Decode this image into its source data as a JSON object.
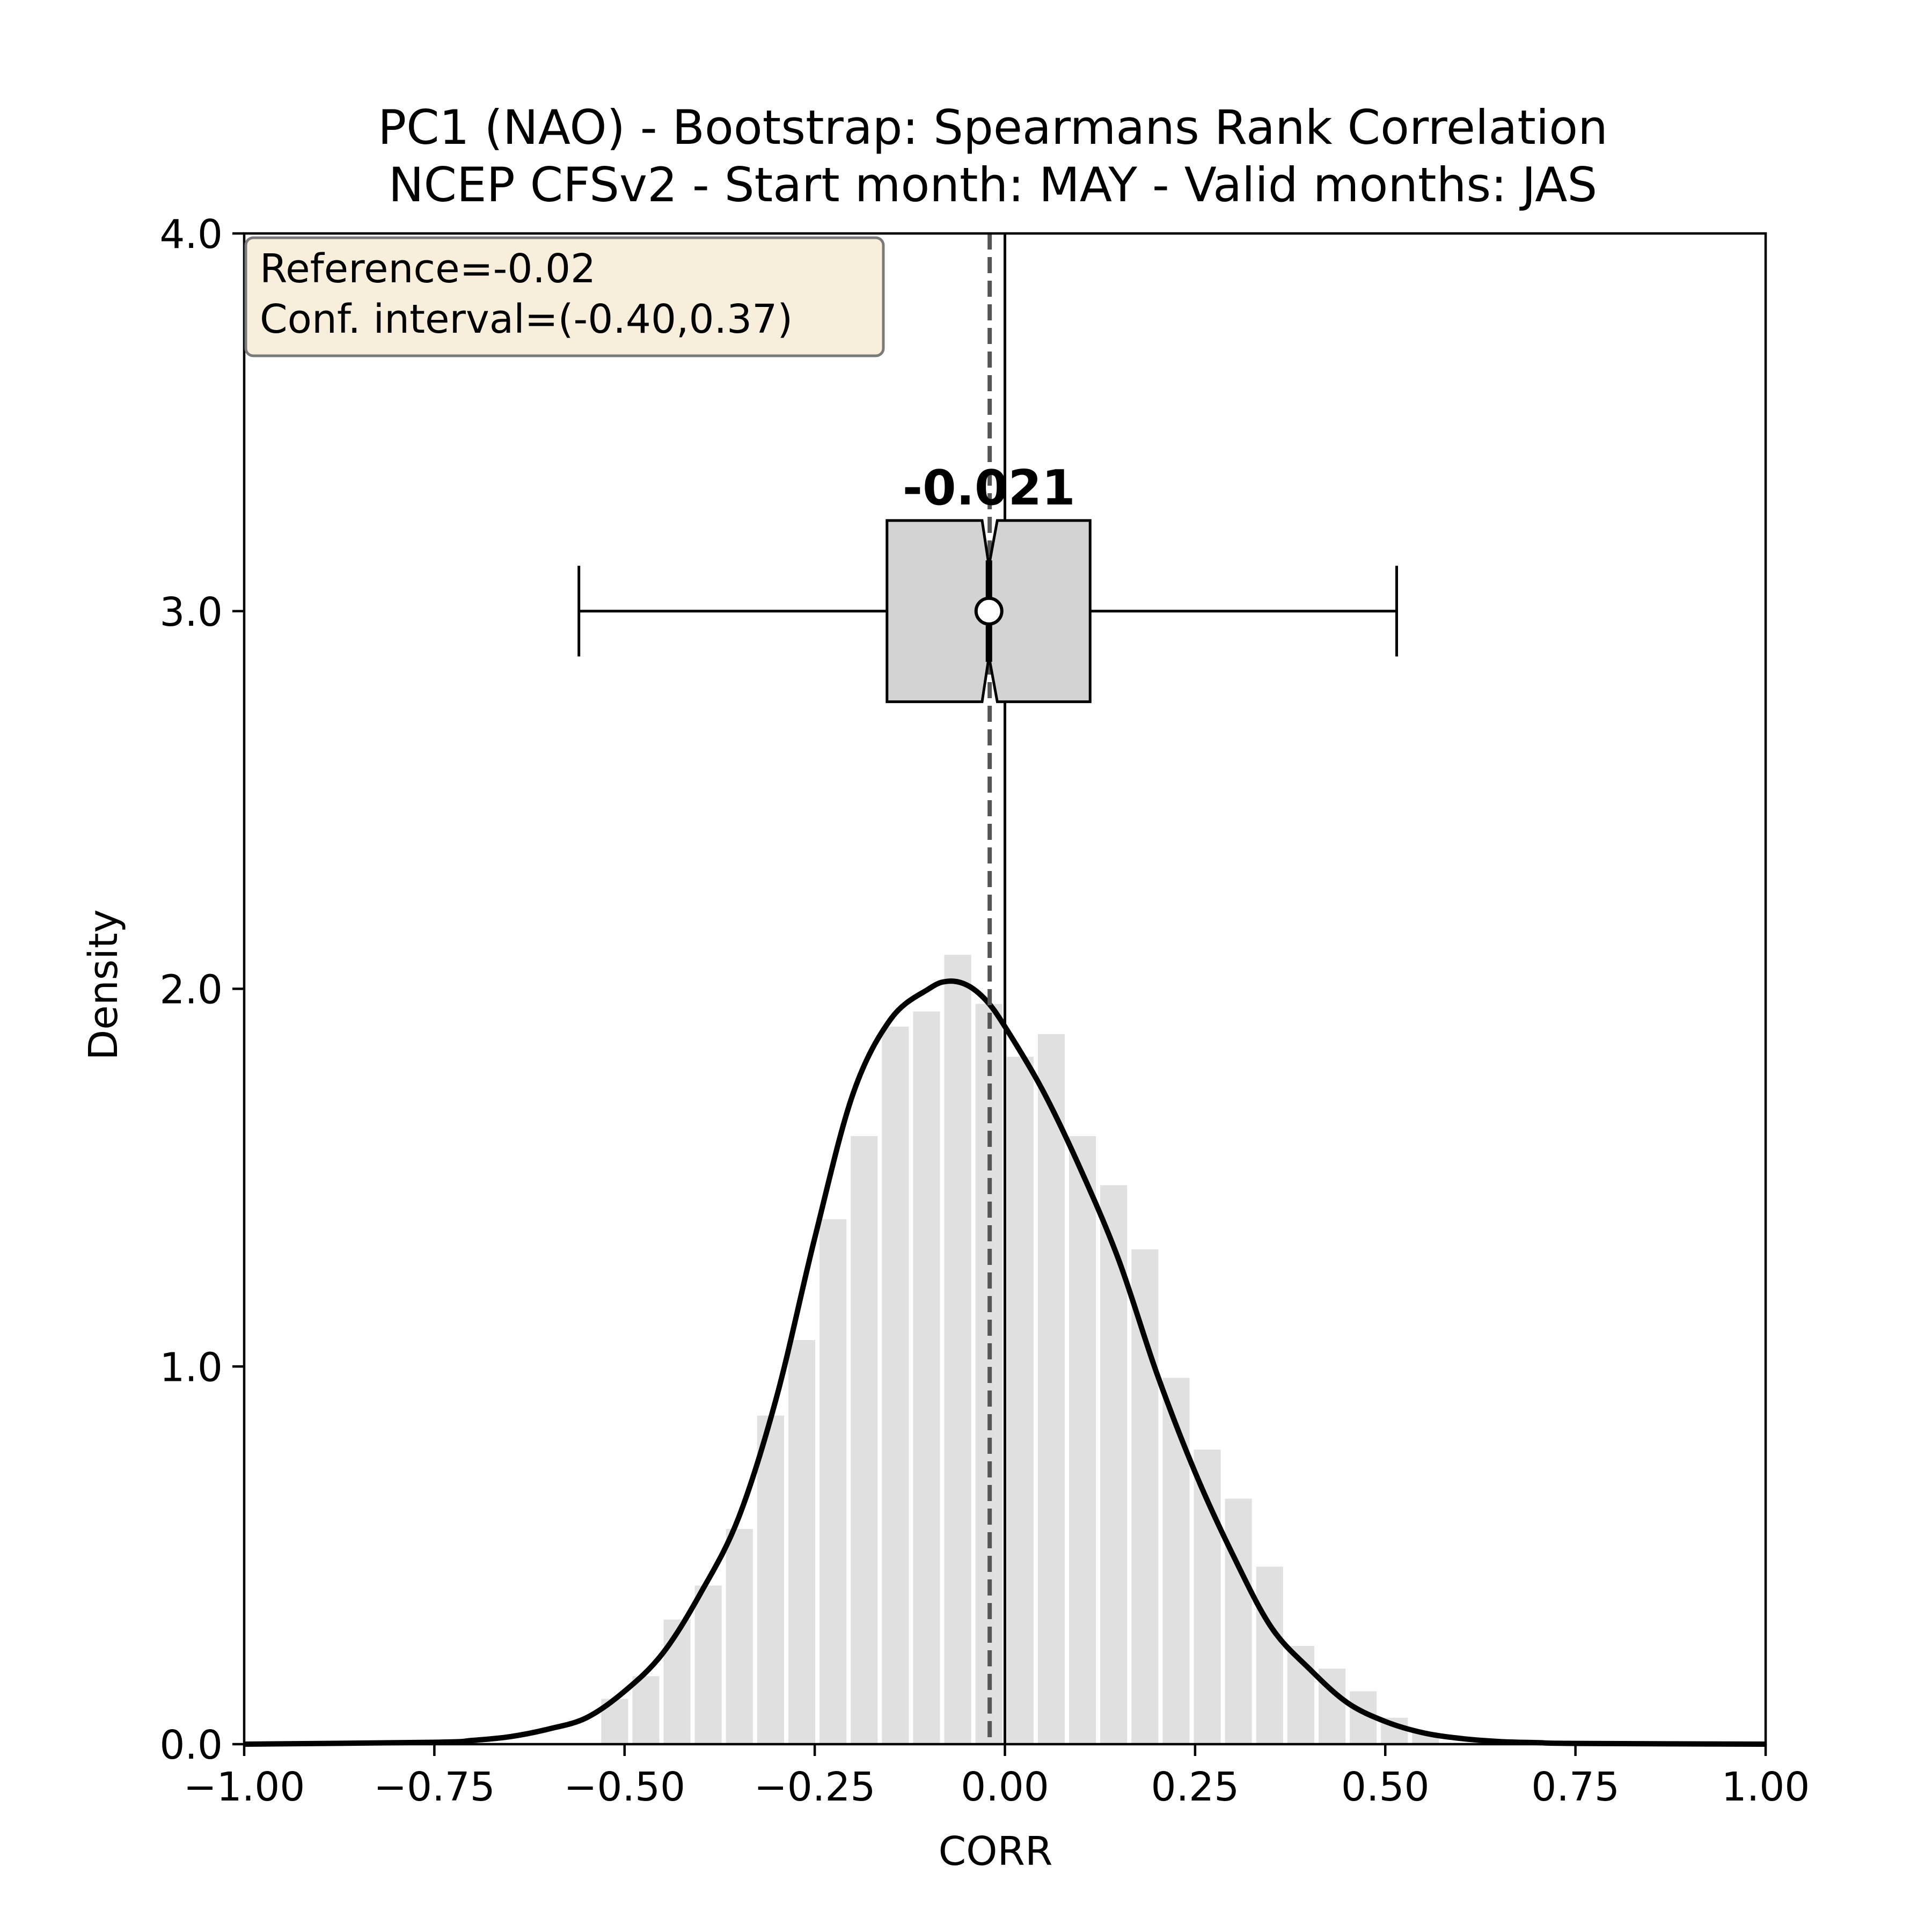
{
  "chart_data": {
    "type": "bar",
    "title": "PC1 (NAO) - Bootstrap: Spearmans Rank Correlation",
    "subtitle": "NCEP CFSv2 - Start month: MAY - Valid months: JAS",
    "xlabel": "CORR",
    "ylabel": "Density",
    "xlim": [
      -1.0,
      1.0
    ],
    "ylim": [
      0.0,
      4.0
    ],
    "xticks": [
      -1.0,
      -0.75,
      -0.5,
      -0.25,
      0.0,
      0.25,
      0.5,
      0.75,
      1.0
    ],
    "xtick_labels": [
      "−1.00",
      "−0.75",
      "−0.50",
      "−0.25",
      "0.00",
      "0.25",
      "0.50",
      "0.75",
      "1.00"
    ],
    "yticks": [
      0.0,
      1.0,
      2.0,
      3.0,
      4.0
    ],
    "ytick_labels": [
      "0.0",
      "1.0",
      "2.0",
      "3.0",
      "4.0"
    ],
    "grid": false,
    "colors": {
      "histogram": "#e0e0e0",
      "kde": "#000000",
      "box_fill": "#d3d3d3",
      "reference_line": "#555555",
      "info_box_fill": "#f8eedc",
      "info_box_border": "#7a7a7a"
    },
    "histogram": {
      "bin_width": 0.041,
      "bins": [
        {
          "x": -0.513,
          "density": 0.12
        },
        {
          "x": -0.472,
          "density": 0.18
        },
        {
          "x": -0.431,
          "density": 0.33
        },
        {
          "x": -0.39,
          "density": 0.42
        },
        {
          "x": -0.349,
          "density": 0.57
        },
        {
          "x": -0.308,
          "density": 0.87
        },
        {
          "x": -0.267,
          "density": 1.07
        },
        {
          "x": -0.226,
          "density": 1.39
        },
        {
          "x": -0.185,
          "density": 1.61
        },
        {
          "x": -0.144,
          "density": 1.9
        },
        {
          "x": -0.103,
          "density": 1.94
        },
        {
          "x": -0.062,
          "density": 2.09
        },
        {
          "x": -0.021,
          "density": 1.96
        },
        {
          "x": 0.02,
          "density": 1.82
        },
        {
          "x": 0.061,
          "density": 1.88
        },
        {
          "x": 0.102,
          "density": 1.61
        },
        {
          "x": 0.143,
          "density": 1.48
        },
        {
          "x": 0.184,
          "density": 1.31
        },
        {
          "x": 0.225,
          "density": 0.97
        },
        {
          "x": 0.266,
          "density": 0.78
        },
        {
          "x": 0.307,
          "density": 0.65
        },
        {
          "x": 0.348,
          "density": 0.47
        },
        {
          "x": 0.389,
          "density": 0.26
        },
        {
          "x": 0.43,
          "density": 0.2
        },
        {
          "x": 0.471,
          "density": 0.14
        },
        {
          "x": 0.512,
          "density": 0.07
        },
        {
          "x": 0.553,
          "density": 0.03
        }
      ]
    },
    "kde": {
      "x": [
        -1.0,
        -0.75,
        -0.7,
        -0.65,
        -0.6,
        -0.55,
        -0.5,
        -0.45,
        -0.4,
        -0.35,
        -0.3,
        -0.25,
        -0.2,
        -0.15,
        -0.1,
        -0.075,
        -0.05,
        -0.025,
        0.0,
        0.05,
        0.1,
        0.15,
        0.2,
        0.25,
        0.3,
        0.35,
        0.4,
        0.45,
        0.5,
        0.55,
        0.6,
        0.65,
        0.7,
        0.75,
        1.0
      ],
      "y": [
        0.0,
        0.005,
        0.01,
        0.02,
        0.04,
        0.07,
        0.14,
        0.24,
        0.4,
        0.6,
        0.92,
        1.34,
        1.72,
        1.92,
        2.0,
        2.02,
        2.01,
        1.97,
        1.9,
        1.73,
        1.52,
        1.28,
        0.98,
        0.72,
        0.5,
        0.31,
        0.2,
        0.11,
        0.06,
        0.03,
        0.015,
        0.007,
        0.004,
        0.002,
        0.0
      ]
    },
    "boxplot": {
      "y_position": 3.0,
      "whisker_low": -0.56,
      "q1": -0.155,
      "median": -0.021,
      "q3": 0.112,
      "whisker_high": 0.515,
      "mean": -0.021,
      "notch_low": -0.03,
      "notch_high": -0.01,
      "box_half_height": 0.24,
      "cap_half_height": 0.12,
      "median_label": "-0.021"
    },
    "reference_line": {
      "x": -0.02
    },
    "zero_line": {
      "x": 0.0
    },
    "info_box": {
      "line1": "Reference=-0.02",
      "line2": "Conf. interval=(-0.40,0.37)"
    }
  }
}
